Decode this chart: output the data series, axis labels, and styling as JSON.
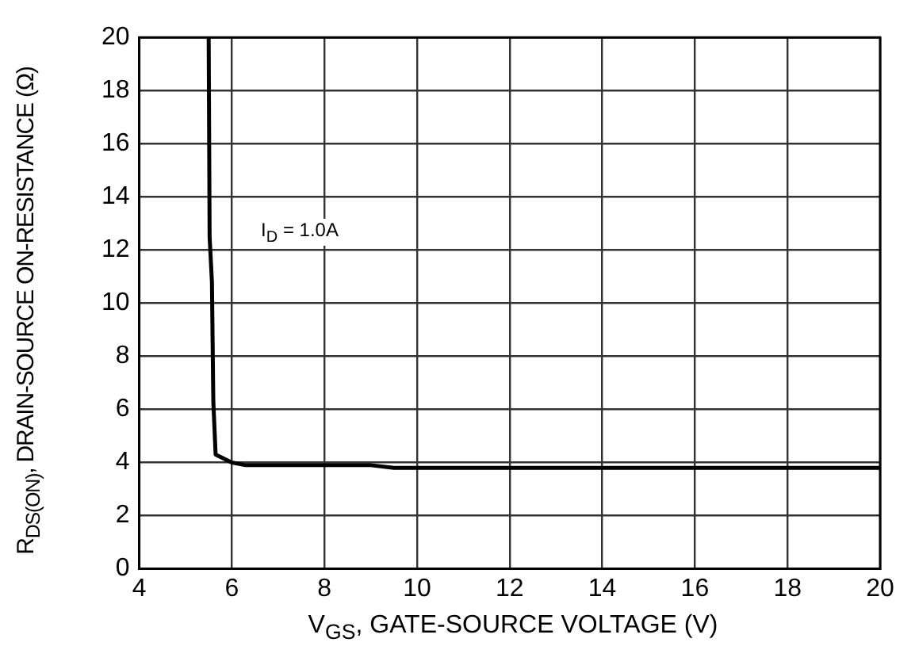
{
  "chart_data": {
    "type": "line",
    "xlabel": "V$_{GS}$, GATE-SOURCE VOLTAGE (V)",
    "ylabel": "R$_{DS(ON)}$, DRAIN-SOURCE ON-RESISTANCE (Ω)",
    "annotations": [
      "I$_{D}$ = 1.0A"
    ],
    "series": [
      {
        "color": "#000000",
        "x": [
          5.5,
          5.52,
          5.57,
          5.6,
          5.65,
          6,
          6.3,
          9,
          9.5,
          20
        ],
        "values": [
          20,
          12.5,
          10.8,
          6.3,
          4.3,
          4.0,
          3.9,
          3.9,
          3.8,
          3.8
        ]
      }
    ],
    "xlim": [
      4,
      20
    ],
    "xticks": [
      4,
      6,
      8,
      10,
      12,
      14,
      16,
      18,
      20
    ],
    "ylim": [
      0,
      20
    ],
    "yticks": [
      0,
      2,
      4,
      6,
      8,
      10,
      12,
      14,
      16,
      18,
      20
    ],
    "grid": true,
    "legend": false,
    "marker": "none",
    "line_style": "solid"
  }
}
